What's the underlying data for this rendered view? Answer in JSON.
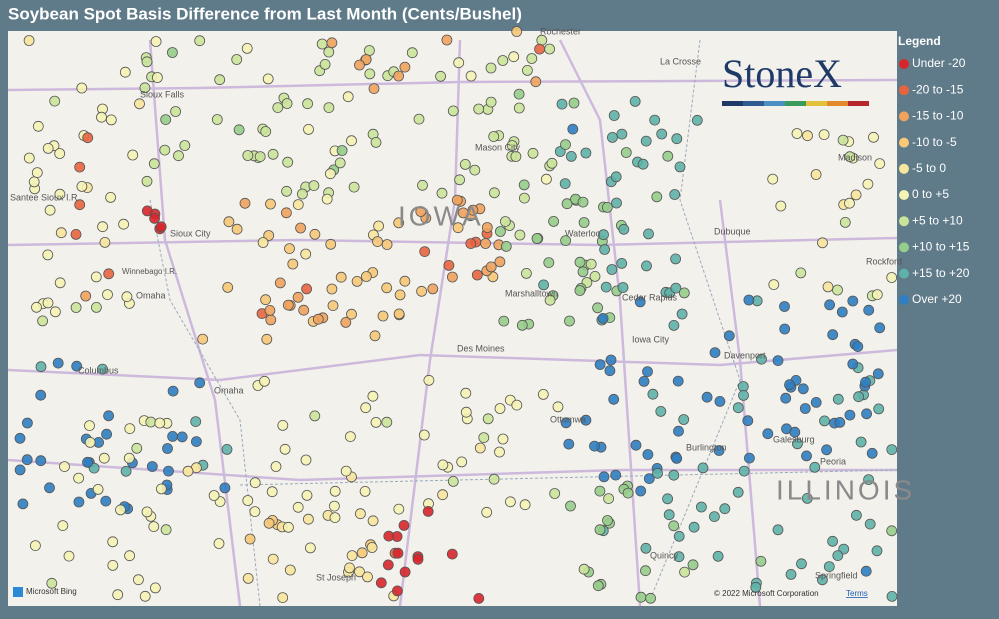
{
  "header": {
    "title": "Soybean Spot Basis Difference from Last Month (Cents/Bushel)"
  },
  "legend": {
    "title": "Legend",
    "items": [
      {
        "label": "Under -20",
        "color": "#d7262b"
      },
      {
        "label": "-20 to -15",
        "color": "#e8643f"
      },
      {
        "label": "-15 to -10",
        "color": "#f0a35e"
      },
      {
        "label": "-10 to -5",
        "color": "#f6c878"
      },
      {
        "label": "-5 to 0",
        "color": "#f8e69c"
      },
      {
        "label": "0 to +5",
        "color": "#f5f3b4"
      },
      {
        "label": "+5 to +10",
        "color": "#cbe49b"
      },
      {
        "label": "+10 to +15",
        "color": "#97cd8b"
      },
      {
        "label": "+15 to +20",
        "color": "#5fb2a9"
      },
      {
        "label": "Over +20",
        "color": "#2f7ec2"
      }
    ]
  },
  "map": {
    "labels": [
      "Rochester",
      "La Crosse",
      "Sioux Falls",
      "Santee Sioux I.R.",
      "Mason City",
      "Madison",
      "IOWA",
      "Sioux City",
      "Waterloo",
      "Dubuque",
      "Winnebago I.R.",
      "Omaha",
      "Marshalltown",
      "Cedar Rapids",
      "Rockford",
      "Iowa City",
      "Columbus",
      "Des Moines",
      "Davenport",
      "Omaha",
      "Ottumwa",
      "Galesburg",
      "Peoria",
      "Burlington",
      "ILLINOIS",
      "Quincy",
      "St Joseph",
      "Springfield"
    ],
    "logo": "StoneX",
    "attribution": {
      "bing": "Microsoft Bing",
      "copyright": "© 2022 Microsoft Corporation",
      "terms": "Terms"
    }
  }
}
